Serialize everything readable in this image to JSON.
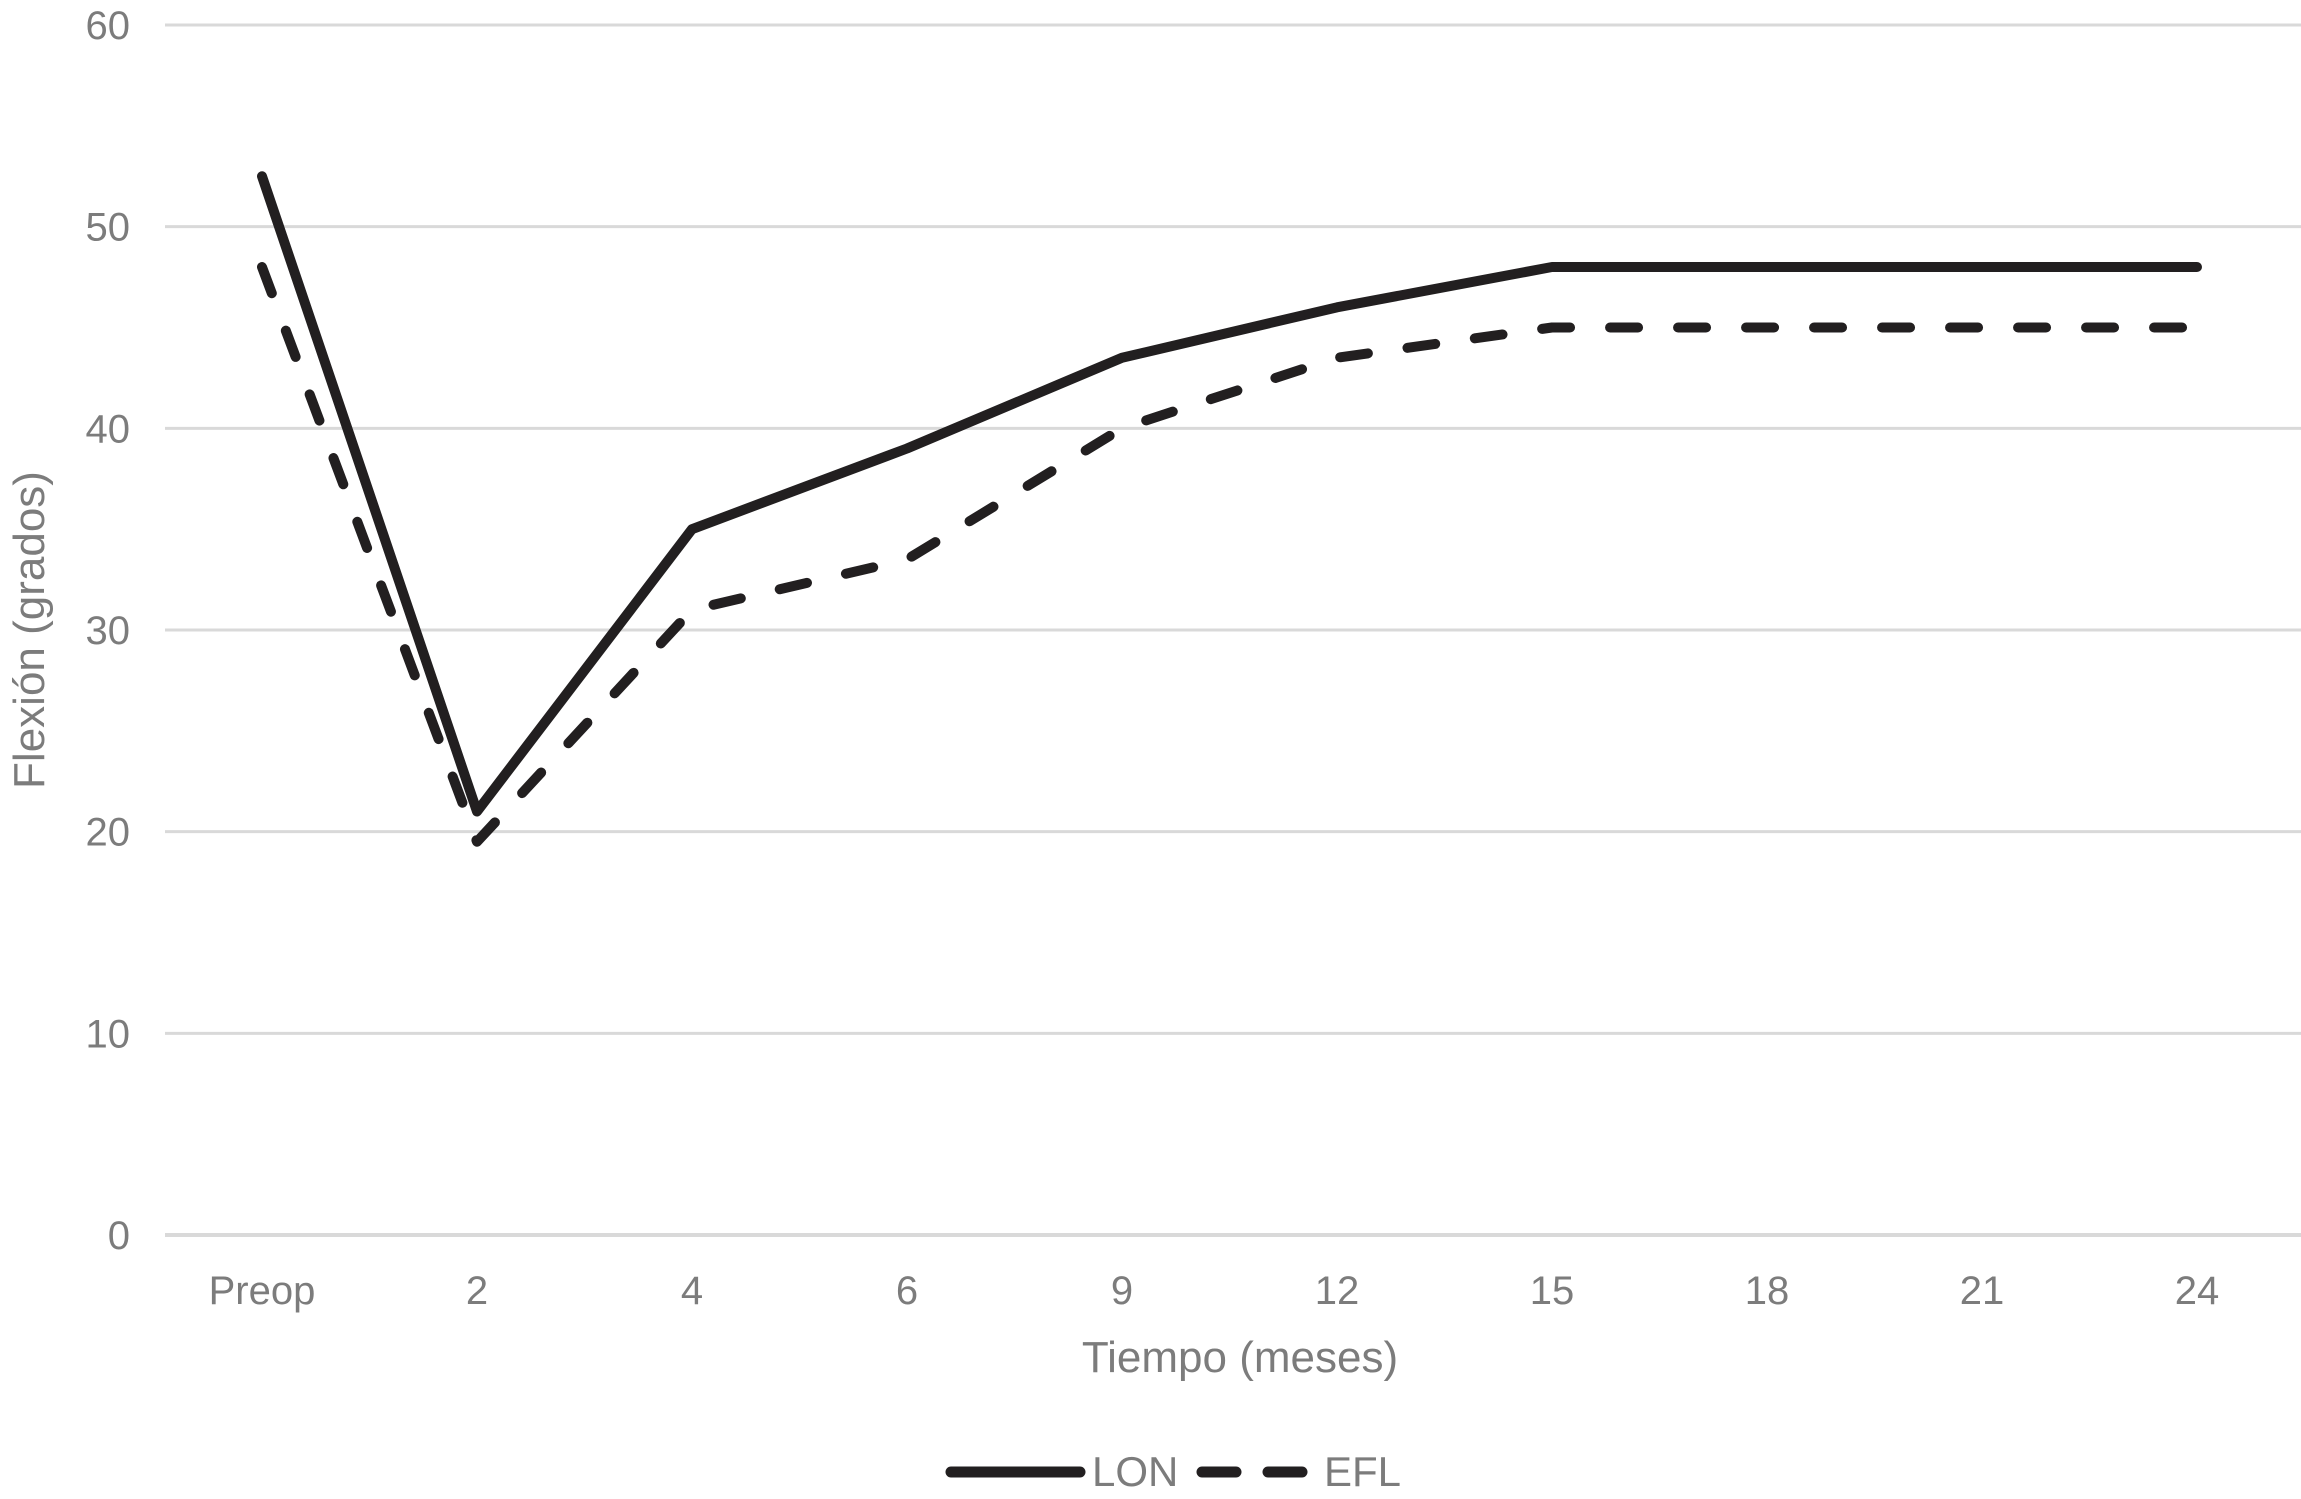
{
  "chart_data": {
    "type": "line",
    "title": "",
    "xlabel": "Tiempo (meses)",
    "ylabel": "Flexión (grados)",
    "categories": [
      "Preop",
      "2",
      "4",
      "6",
      "9",
      "12",
      "15",
      "18",
      "21",
      "24"
    ],
    "series": [
      {
        "name": "LON",
        "style": "solid",
        "values": [
          52.5,
          21,
          35,
          39,
          43.5,
          46,
          48,
          48,
          48,
          48
        ]
      },
      {
        "name": "EFL",
        "style": "dashed",
        "values": [
          48,
          19.5,
          31,
          33.5,
          40,
          43.5,
          45,
          45,
          45,
          45
        ]
      }
    ],
    "y_ticks": [
      0,
      10,
      20,
      30,
      40,
      50,
      60
    ],
    "ylim": [
      0,
      60
    ],
    "grid": true,
    "legend_position": "bottom",
    "colors": {
      "line": "#221f20",
      "grid": "#d9d9d9",
      "axis_text": "#7c7c7c"
    }
  }
}
